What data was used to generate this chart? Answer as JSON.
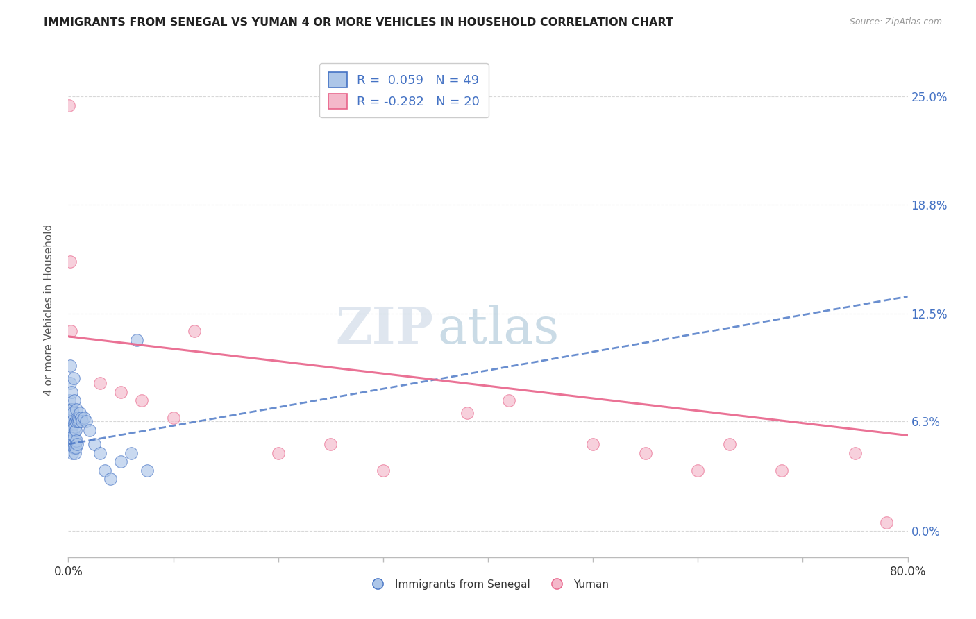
{
  "title": "IMMIGRANTS FROM SENEGAL VS YUMAN 4 OR MORE VEHICLES IN HOUSEHOLD CORRELATION CHART",
  "source": "Source: ZipAtlas.com",
  "ylabel": "4 or more Vehicles in Household",
  "y_tick_values": [
    0.0,
    6.3,
    12.5,
    18.8,
    25.0
  ],
  "x_min": 0.0,
  "x_max": 80.0,
  "y_min": -1.5,
  "y_max": 27.0,
  "legend_blue_label": "Immigrants from Senegal",
  "legend_pink_label": "Yuman",
  "R_blue": 0.059,
  "N_blue": 49,
  "R_pink": -0.282,
  "N_pink": 20,
  "blue_scatter_x": [
    0.05,
    0.08,
    0.1,
    0.12,
    0.15,
    0.18,
    0.2,
    0.22,
    0.25,
    0.28,
    0.3,
    0.32,
    0.35,
    0.38,
    0.4,
    0.42,
    0.45,
    0.48,
    0.5,
    0.52,
    0.55,
    0.58,
    0.6,
    0.62,
    0.65,
    0.68,
    0.7,
    0.72,
    0.75,
    0.78,
    0.8,
    0.85,
    0.9,
    0.95,
    1.0,
    1.1,
    1.2,
    1.3,
    1.5,
    1.7,
    2.0,
    2.5,
    3.0,
    3.5,
    4.0,
    5.0,
    6.0,
    6.5,
    7.5
  ],
  "blue_scatter_y": [
    5.5,
    6.0,
    7.5,
    5.0,
    8.5,
    7.0,
    9.5,
    6.8,
    6.5,
    5.8,
    8.0,
    5.2,
    6.3,
    4.5,
    7.0,
    5.5,
    6.8,
    5.0,
    8.8,
    4.8,
    6.2,
    5.5,
    7.5,
    4.5,
    6.0,
    5.8,
    6.3,
    4.8,
    7.0,
    5.2,
    6.5,
    5.0,
    6.3,
    6.5,
    6.3,
    6.8,
    6.5,
    6.3,
    6.5,
    6.3,
    5.8,
    5.0,
    4.5,
    3.5,
    3.0,
    4.0,
    4.5,
    11.0,
    3.5
  ],
  "pink_scatter_x": [
    0.05,
    0.15,
    0.25,
    3.0,
    5.0,
    7.0,
    10.0,
    12.0,
    20.0,
    25.0,
    30.0,
    38.0,
    42.0,
    50.0,
    55.0,
    60.0,
    63.0,
    68.0,
    75.0,
    78.0
  ],
  "pink_scatter_y": [
    24.5,
    15.5,
    11.5,
    8.5,
    8.0,
    7.5,
    6.5,
    11.5,
    4.5,
    5.0,
    3.5,
    6.8,
    7.5,
    5.0,
    4.5,
    3.5,
    5.0,
    3.5,
    4.5,
    0.5
  ],
  "blue_line_x": [
    0.0,
    80.0
  ],
  "blue_line_y_start": 5.0,
  "blue_line_y_end": 13.5,
  "pink_line_x": [
    0.0,
    80.0
  ],
  "pink_line_y_start": 11.2,
  "pink_line_y_end": 5.5,
  "watermark_zip": "ZIP",
  "watermark_atlas": "atlas",
  "blue_color": "#adc6e8",
  "blue_line_color": "#4472c4",
  "pink_color": "#f4b8ca",
  "pink_line_color": "#e8638a",
  "title_color": "#222222",
  "axis_label_color": "#555555",
  "right_tick_color": "#4472c4",
  "grid_color": "#d8d8d8"
}
